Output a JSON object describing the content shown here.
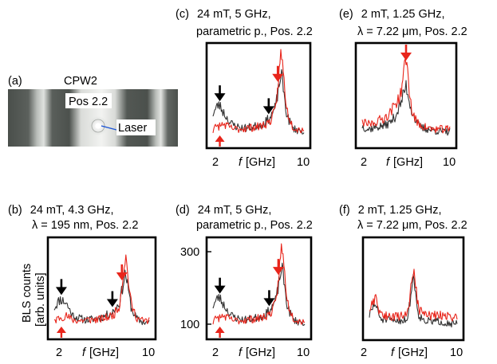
{
  "figure": {
    "panel_a": {
      "label": "(a)",
      "title": "CPW2",
      "position_label": "Pos 2.2",
      "laser_label": "Laser"
    },
    "y_axis": {
      "label_line1": "BLS counts",
      "label_line2": "[arb. units]"
    },
    "x_axis_label_italic": "f",
    "x_axis_label_unit": "[GHz]"
  },
  "chart_data": [
    {
      "id": "b",
      "type": "line",
      "label": "(b)",
      "title_lines": [
        "24 mT, 4.3 GHz,",
        "λ = 195 nm, Pos. 2.2"
      ],
      "x_tick_labels": [
        "2",
        "10"
      ],
      "xlim": [
        2,
        10
      ],
      "y_tick_labels": [],
      "series": [
        {
          "color": "#333333",
          "x": [
            2,
            2.5,
            3,
            3.5,
            4,
            4.5,
            5,
            5.5,
            6,
            6.5,
            7,
            7.5,
            8,
            8.5,
            9,
            9.5,
            10
          ],
          "y": [
            0.42,
            0.56,
            0.5,
            0.3,
            0.25,
            0.22,
            0.22,
            0.24,
            0.26,
            0.3,
            0.36,
            0.5,
            1.0,
            0.4,
            0.22,
            0.18,
            0.16
          ]
        },
        {
          "color": "#e8251b",
          "x": [
            2,
            2.5,
            3,
            3.5,
            4,
            4.5,
            5,
            5.5,
            6,
            6.5,
            7,
            7.5,
            8,
            8.5,
            9,
            9.5,
            10
          ],
          "y": [
            0.2,
            0.26,
            0.28,
            0.22,
            0.2,
            0.21,
            0.22,
            0.22,
            0.23,
            0.26,
            0.3,
            0.45,
            1.3,
            0.45,
            0.24,
            0.2,
            0.2
          ]
        }
      ],
      "annotations": [
        {
          "type": "arrow-down",
          "color": "#000000",
          "x": 2.6
        },
        {
          "type": "arrow-down",
          "color": "#000000",
          "x": 6.9
        },
        {
          "type": "arrow-down",
          "color": "#e8251b",
          "x": 7.7
        },
        {
          "type": "arrow-up",
          "color": "#e8251b",
          "x": 2.6
        }
      ]
    },
    {
      "id": "c",
      "type": "line",
      "label": "(c)",
      "title_lines": [
        "24 mT, 5 GHz,",
        "parametric p., Pos. 2.2"
      ],
      "x_tick_labels": [
        "2",
        "10"
      ],
      "xlim": [
        2,
        10
      ],
      "y_tick_labels": [],
      "series": [
        {
          "color": "#333333",
          "x": [
            2,
            2.5,
            3,
            3.5,
            4,
            4.5,
            5,
            5.5,
            6,
            6.5,
            7,
            7.5,
            8,
            8.5,
            9,
            9.5,
            10
          ],
          "y": [
            0.45,
            0.6,
            0.45,
            0.3,
            0.25,
            0.22,
            0.22,
            0.24,
            0.26,
            0.3,
            0.38,
            0.55,
            1.1,
            0.42,
            0.22,
            0.18,
            0.16
          ]
        },
        {
          "color": "#e8251b",
          "x": [
            2,
            2.5,
            3,
            3.5,
            4,
            4.5,
            5,
            5.5,
            6,
            6.5,
            7,
            7.5,
            8,
            8.5,
            9,
            9.5,
            10
          ],
          "y": [
            0.2,
            0.25,
            0.28,
            0.22,
            0.2,
            0.21,
            0.22,
            0.23,
            0.24,
            0.27,
            0.32,
            0.5,
            1.45,
            0.5,
            0.25,
            0.2,
            0.2
          ]
        }
      ],
      "annotations": [
        {
          "type": "arrow-down",
          "color": "#000000",
          "x": 2.6
        },
        {
          "type": "arrow-down",
          "color": "#000000",
          "x": 6.9
        },
        {
          "type": "arrow-down",
          "color": "#e8251b",
          "x": 7.7
        },
        {
          "type": "arrow-up",
          "color": "#e8251b",
          "x": 2.6
        }
      ]
    },
    {
      "id": "d",
      "type": "line",
      "label": "(d)",
      "title_lines": [
        "24 mT, 5 GHz,",
        "parametric p., Pos. 2.2"
      ],
      "x_tick_labels": [
        "2",
        "10"
      ],
      "xlim": [
        2,
        10
      ],
      "y_tick_labels": [
        "300",
        "100"
      ],
      "series": [
        {
          "color": "#333333",
          "x": [
            2,
            2.5,
            3,
            3.5,
            4,
            4.5,
            5,
            5.5,
            6,
            6.5,
            7,
            7.5,
            8,
            8.5,
            9,
            9.5,
            10
          ],
          "y": [
            0.45,
            0.6,
            0.45,
            0.3,
            0.25,
            0.22,
            0.22,
            0.24,
            0.26,
            0.3,
            0.38,
            0.55,
            1.1,
            0.42,
            0.22,
            0.18,
            0.16
          ]
        },
        {
          "color": "#e8251b",
          "x": [
            2,
            2.5,
            3,
            3.5,
            4,
            4.5,
            5,
            5.5,
            6,
            6.5,
            7,
            7.5,
            8,
            8.5,
            9,
            9.5,
            10
          ],
          "y": [
            0.2,
            0.25,
            0.28,
            0.22,
            0.2,
            0.21,
            0.22,
            0.23,
            0.24,
            0.27,
            0.32,
            0.5,
            1.45,
            0.5,
            0.25,
            0.2,
            0.2
          ]
        }
      ],
      "annotations": [
        {
          "type": "arrow-down",
          "color": "#000000",
          "x": 2.6
        },
        {
          "type": "arrow-down",
          "color": "#000000",
          "x": 6.9
        },
        {
          "type": "arrow-down",
          "color": "#e8251b",
          "x": 7.7
        },
        {
          "type": "arrow-up",
          "color": "#e8251b",
          "x": 2.6
        }
      ]
    },
    {
      "id": "e",
      "type": "line",
      "label": "(e)",
      "title_lines": [
        "2 mT, 1.25 GHz,",
        "λ = 7.22 μm, Pos. 2.2"
      ],
      "x_tick_labels": [
        "2",
        "10"
      ],
      "xlim": [
        2,
        10
      ],
      "y_tick_labels": [],
      "series": [
        {
          "color": "#333333",
          "x": [
            2,
            2.5,
            3,
            3.5,
            4,
            4.5,
            5,
            5.5,
            6,
            6.5,
            7,
            7.5,
            8,
            8.5,
            9,
            9.5,
            10
          ],
          "y": [
            0.25,
            0.2,
            0.22,
            0.24,
            0.26,
            0.3,
            0.4,
            0.6,
            0.9,
            0.5,
            0.28,
            0.22,
            0.2,
            0.18,
            0.17,
            0.16,
            0.16
          ]
        },
        {
          "color": "#e8251b",
          "x": [
            2,
            2.5,
            3,
            3.5,
            4,
            4.5,
            5,
            5.5,
            6,
            6.5,
            7,
            7.5,
            8,
            8.5,
            9,
            9.5,
            10
          ],
          "y": [
            0.3,
            0.28,
            0.3,
            0.34,
            0.38,
            0.45,
            0.6,
            0.75,
            1.35,
            0.5,
            0.3,
            0.25,
            0.22,
            0.2,
            0.2,
            0.2,
            0.2
          ]
        }
      ],
      "annotations": [
        {
          "type": "arrow-down",
          "color": "#e8251b",
          "x": 6.0
        }
      ]
    },
    {
      "id": "f",
      "type": "line",
      "label": "(f)",
      "title_lines": [
        "2 mT, 1.25 GHz,",
        "λ = 7.22 μm, Pos. 2.2"
      ],
      "x_tick_labels": [
        "2",
        "10"
      ],
      "xlim": [
        2,
        10
      ],
      "y_tick_labels": [],
      "series": [
        {
          "color": "#333333",
          "x": [
            2,
            2.5,
            3,
            3.5,
            4,
            4.5,
            5,
            5.5,
            6,
            6.5,
            7,
            7.5,
            8,
            8.5,
            9,
            9.5,
            10
          ],
          "y": [
            0.3,
            0.5,
            0.25,
            0.22,
            0.22,
            0.22,
            0.22,
            0.25,
            0.95,
            0.3,
            0.22,
            0.2,
            0.2,
            0.2,
            0.18,
            0.17,
            0.16
          ]
        },
        {
          "color": "#e8251b",
          "x": [
            2,
            2.5,
            3,
            3.5,
            4,
            4.5,
            5,
            5.5,
            6,
            6.5,
            7,
            7.5,
            8,
            8.5,
            9,
            9.5,
            10
          ],
          "y": [
            0.35,
            0.6,
            0.3,
            0.3,
            0.28,
            0.28,
            0.3,
            0.34,
            1.05,
            0.4,
            0.32,
            0.3,
            0.3,
            0.3,
            0.3,
            0.28,
            0.26
          ]
        }
      ],
      "annotations": []
    }
  ]
}
